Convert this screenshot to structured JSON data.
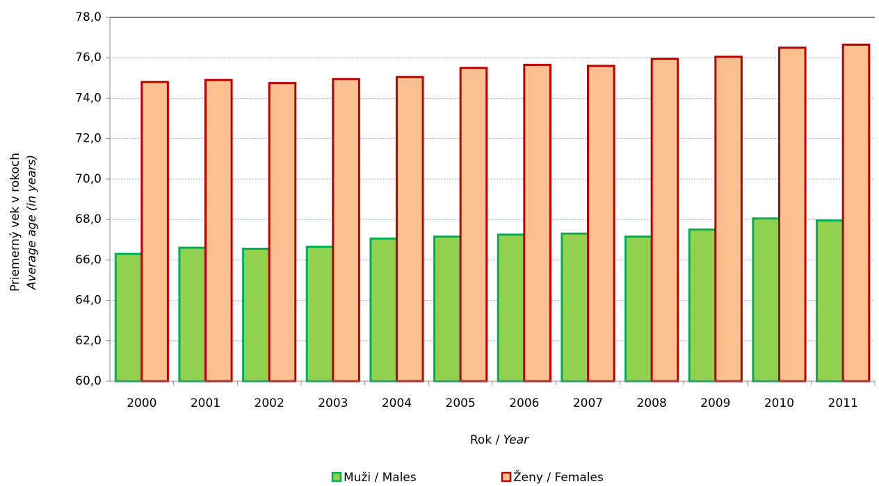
{
  "chart_data": {
    "type": "bar",
    "ylabel": [
      "Priemerný vek v rokoch",
      "Average age (in years)"
    ],
    "xlabel": {
      "text": "Rok /",
      "italic": "Year"
    },
    "categories": [
      "2000",
      "2001",
      "2002",
      "2003",
      "2004",
      "2005",
      "2006",
      "2007",
      "2008",
      "2009",
      "2010",
      "2011"
    ],
    "series": [
      {
        "name": "Muži / Males",
        "color": "#92d050",
        "edge": "#00b050",
        "values": [
          66.3,
          66.6,
          66.55,
          66.65,
          67.05,
          67.15,
          67.25,
          67.3,
          67.15,
          67.5,
          68.05,
          67.95
        ]
      },
      {
        "name": "Ženy / Females",
        "color": "#fac090",
        "edge": "#c00000",
        "values": [
          74.8,
          74.9,
          74.75,
          74.95,
          75.05,
          75.5,
          75.65,
          75.6,
          75.95,
          76.05,
          76.5,
          76.65
        ]
      }
    ],
    "ylim": [
      60,
      78
    ],
    "yticks": [
      {
        "value": 60,
        "label": "60,0"
      },
      {
        "value": 62,
        "label": "62,0"
      },
      {
        "value": 64,
        "label": "64,0"
      },
      {
        "value": 66,
        "label": "66,0"
      },
      {
        "value": 68,
        "label": "68,0"
      },
      {
        "value": 70,
        "label": "70,0"
      },
      {
        "value": 72,
        "label": "72,0"
      },
      {
        "value": 74,
        "label": "74,0"
      },
      {
        "value": 76,
        "label": "76,0"
      },
      {
        "value": 78,
        "label": "78,0"
      }
    ],
    "grid": true,
    "legend": "bottom"
  }
}
